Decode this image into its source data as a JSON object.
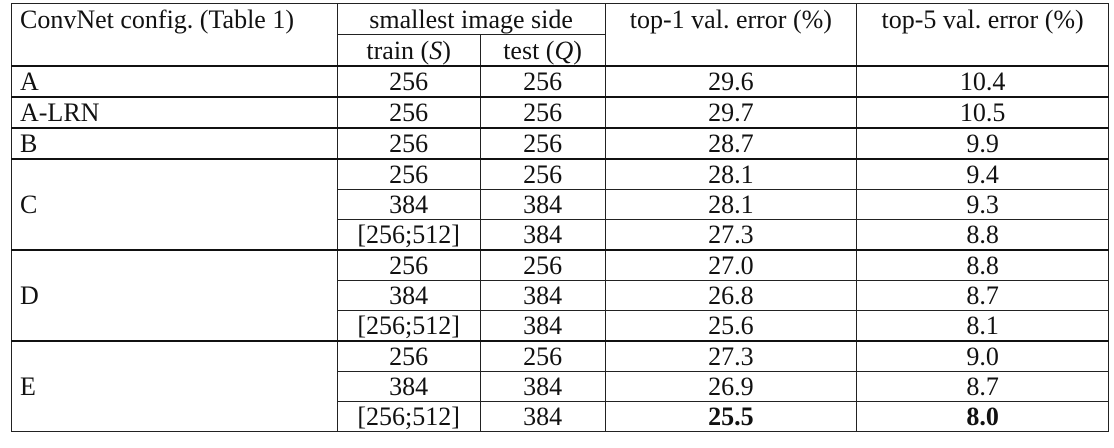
{
  "header": {
    "config": "ConvNet config. (Table 1)",
    "smallest_side": "smallest image side",
    "train": "train (",
    "train_var": "S",
    "test": "test (",
    "test_var": "Q",
    "close_paren": ")",
    "top1": "top-1 val. error (%)",
    "top5": "top-5 val. error (%)"
  },
  "rows": {
    "A": {
      "config": "A",
      "train": "256",
      "test": "256",
      "top1": "29.6",
      "top5": "10.4"
    },
    "A_LRN": {
      "config": "A-LRN",
      "train": "256",
      "test": "256",
      "top1": "29.7",
      "top5": "10.5"
    },
    "B": {
      "config": "B",
      "train": "256",
      "test": "256",
      "top1": "28.7",
      "top5": "9.9"
    },
    "C": {
      "config": "C",
      "r": [
        {
          "train": "256",
          "test": "256",
          "top1": "28.1",
          "top5": "9.4"
        },
        {
          "train": "384",
          "test": "384",
          "top1": "28.1",
          "top5": "9.3"
        },
        {
          "train": "[256;512]",
          "test": "384",
          "top1": "27.3",
          "top5": "8.8"
        }
      ]
    },
    "D": {
      "config": "D",
      "r": [
        {
          "train": "256",
          "test": "256",
          "top1": "27.0",
          "top5": "8.8"
        },
        {
          "train": "384",
          "test": "384",
          "top1": "26.8",
          "top5": "8.7"
        },
        {
          "train": "[256;512]",
          "test": "384",
          "top1": "25.6",
          "top5": "8.1"
        }
      ]
    },
    "E": {
      "config": "E",
      "r": [
        {
          "train": "256",
          "test": "256",
          "top1": "27.3",
          "top5": "9.0"
        },
        {
          "train": "384",
          "test": "384",
          "top1": "26.9",
          "top5": "8.7"
        },
        {
          "train": "[256;512]",
          "test": "384",
          "top1": "25.5",
          "top5": "8.0"
        }
      ]
    }
  }
}
